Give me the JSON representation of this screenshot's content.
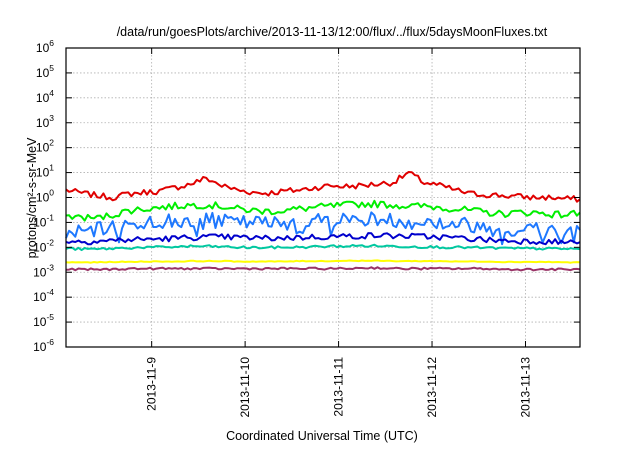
{
  "chart_data": {
    "type": "line",
    "title": "/data/run/goesPlots/archive/2013-11-13/12:00/flux/../flux/5daysMoonFluxes.txt",
    "xlabel": "Coordinated Universal Time (UTC)",
    "ylabel": "protons/cm²-s-sr-MeV",
    "yscale": "log",
    "ylim": [
      1e-06,
      1000000.0
    ],
    "xlim": [
      "2013-11-08T02:00",
      "2013-11-13T14:00"
    ],
    "grid": true,
    "x_ticks": [
      {
        "value": "2013-11-09T00:00",
        "label": "2013-11-9"
      },
      {
        "value": "2013-11-10T00:00",
        "label": "2013-11-10"
      },
      {
        "value": "2013-11-11T00:00",
        "label": "2013-11-11"
      },
      {
        "value": "2013-11-12T00:00",
        "label": "2013-11-12"
      },
      {
        "value": "2013-11-13T00:00",
        "label": "2013-11-13"
      }
    ],
    "y_ticks": [
      {
        "base": "10",
        "exp": "-6"
      },
      {
        "base": "10",
        "exp": "-5"
      },
      {
        "base": "10",
        "exp": "-4"
      },
      {
        "base": "10",
        "exp": "-3"
      },
      {
        "base": "10",
        "exp": "-2"
      },
      {
        "base": "10",
        "exp": "-1"
      },
      {
        "base": "10",
        "exp": "0"
      },
      {
        "base": "10",
        "exp": "1"
      },
      {
        "base": "10",
        "exp": "2"
      },
      {
        "base": "10",
        "exp": "3"
      },
      {
        "base": "10",
        "exp": "4"
      },
      {
        "base": "10",
        "exp": "5"
      },
      {
        "base": "10",
        "exp": "6"
      }
    ],
    "x": [
      "2013-11-08T02:00",
      "2013-11-08T06:00",
      "2013-11-08T10:00",
      "2013-11-08T14:00",
      "2013-11-08T18:00",
      "2013-11-08T22:00",
      "2013-11-09T02:00",
      "2013-11-09T06:00",
      "2013-11-09T10:00",
      "2013-11-09T14:00",
      "2013-11-09T18:00",
      "2013-11-09T22:00",
      "2013-11-10T02:00",
      "2013-11-10T06:00",
      "2013-11-10T10:00",
      "2013-11-10T14:00",
      "2013-11-10T18:00",
      "2013-11-10T22:00",
      "2013-11-11T02:00",
      "2013-11-11T06:00",
      "2013-11-11T10:00",
      "2013-11-11T14:00",
      "2013-11-11T18:00",
      "2013-11-11T22:00",
      "2013-11-12T02:00",
      "2013-11-12T06:00",
      "2013-11-12T10:00",
      "2013-11-12T14:00",
      "2013-11-12T18:00",
      "2013-11-12T22:00",
      "2013-11-13T02:00",
      "2013-11-13T06:00",
      "2013-11-13T10:00",
      "2013-11-13T14:00"
    ],
    "series": [
      {
        "color": "#e00000",
        "values": [
          2.0,
          1.5,
          1.2,
          1.0,
          1.4,
          1.6,
          1.8,
          2.5,
          3.5,
          6.0,
          3.0,
          2.0,
          1.6,
          1.5,
          1.8,
          2.0,
          2.5,
          3.0,
          2.8,
          3.0,
          3.5,
          4.0,
          10.0,
          4.0,
          3.0,
          2.0,
          1.4,
          1.3,
          1.2,
          1.1,
          1.0,
          1.0,
          0.9,
          0.85
        ]
      },
      {
        "color": "#00ee00",
        "values": [
          0.18,
          0.16,
          0.15,
          0.2,
          0.3,
          0.35,
          0.4,
          0.45,
          0.5,
          0.5,
          0.45,
          0.35,
          0.3,
          0.28,
          0.3,
          0.35,
          0.4,
          0.45,
          0.5,
          0.55,
          0.55,
          0.5,
          0.45,
          0.45,
          0.4,
          0.35,
          0.3,
          0.25,
          0.22,
          0.25,
          0.25,
          0.22,
          0.2,
          0.25
        ]
      },
      {
        "color": "#1e78ff",
        "values": [
          0.035,
          0.04,
          0.05,
          0.06,
          0.08,
          0.1,
          0.1,
          0.12,
          0.12,
          0.13,
          0.11,
          0.1,
          0.1,
          0.09,
          0.1,
          0.11,
          0.12,
          0.13,
          0.13,
          0.14,
          0.14,
          0.12,
          0.11,
          0.1,
          0.1,
          0.09,
          0.08,
          0.06,
          0.05,
          0.05,
          0.06,
          0.05,
          0.05,
          0.05
        ]
      },
      {
        "color": "#0000cc",
        "values": [
          0.018,
          0.017,
          0.018,
          0.019,
          0.02,
          0.021,
          0.022,
          0.023,
          0.025,
          0.026,
          0.026,
          0.025,
          0.024,
          0.023,
          0.024,
          0.025,
          0.026,
          0.027,
          0.028,
          0.029,
          0.03,
          0.029,
          0.028,
          0.027,
          0.026,
          0.024,
          0.022,
          0.02,
          0.019,
          0.018,
          0.018,
          0.017,
          0.016,
          0.016
        ]
      },
      {
        "color": "#00c8a0",
        "values": [
          0.009,
          0.0085,
          0.0085,
          0.009,
          0.0095,
          0.01,
          0.01,
          0.0105,
          0.011,
          0.011,
          0.0105,
          0.01,
          0.0098,
          0.0098,
          0.01,
          0.0102,
          0.0105,
          0.011,
          0.0112,
          0.0115,
          0.0115,
          0.011,
          0.0108,
          0.0105,
          0.0102,
          0.01,
          0.0098,
          0.0095,
          0.0092,
          0.009,
          0.009,
          0.0088,
          0.0088,
          0.0085
        ]
      },
      {
        "color": "#ffff00",
        "values": [
          0.0025,
          0.0025,
          0.0025,
          0.0026,
          0.0026,
          0.0027,
          0.0027,
          0.0027,
          0.0028,
          0.0028,
          0.0028,
          0.0027,
          0.0027,
          0.0027,
          0.0027,
          0.0028,
          0.0028,
          0.0028,
          0.0029,
          0.0029,
          0.0029,
          0.0028,
          0.0028,
          0.0028,
          0.0028,
          0.0027,
          0.0027,
          0.0027,
          0.0026,
          0.0026,
          0.0026,
          0.0026,
          0.0025,
          0.0025
        ]
      },
      {
        "color": "#993366",
        "values": [
          0.0013,
          0.0013,
          0.0013,
          0.0013,
          0.0014,
          0.0014,
          0.0014,
          0.0014,
          0.0014,
          0.0014,
          0.0014,
          0.0014,
          0.0014,
          0.0014,
          0.0014,
          0.0014,
          0.0014,
          0.0014,
          0.0014,
          0.0015,
          0.0015,
          0.0014,
          0.0014,
          0.0014,
          0.0014,
          0.0014,
          0.0014,
          0.0014,
          0.0013,
          0.0013,
          0.0013,
          0.0013,
          0.0013,
          0.0013
        ]
      }
    ]
  }
}
